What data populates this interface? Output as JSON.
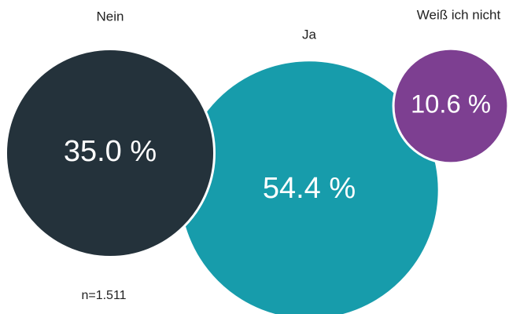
{
  "chart_data": {
    "type": "bubble",
    "categories": [
      "Nein",
      "Ja",
      "Weiß ich nicht"
    ],
    "values": [
      35.0,
      54.4,
      10.6
    ],
    "value_labels": [
      "35.0 %",
      "54.4 %",
      "10.6 %"
    ],
    "colors": [
      "#24323b",
      "#179cab",
      "#7d3f91"
    ],
    "annotation": "n=1.511"
  }
}
